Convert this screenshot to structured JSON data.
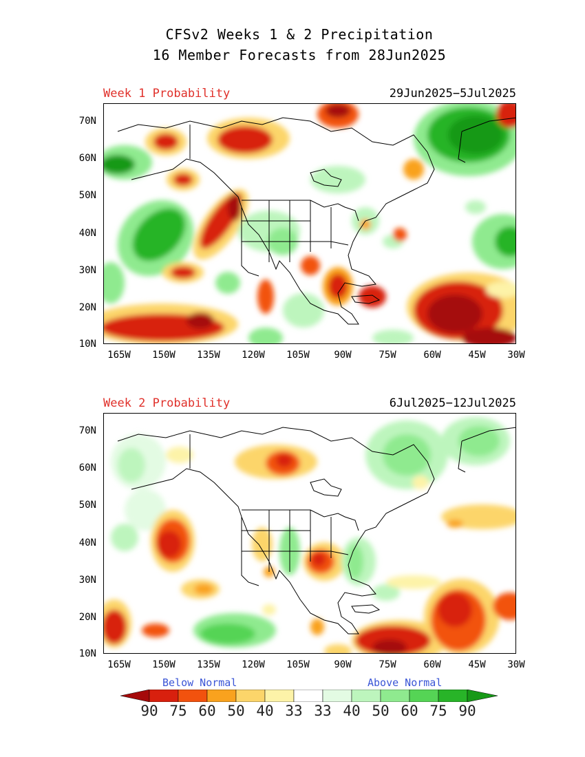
{
  "title": {
    "line1": "CFSv2 Weeks 1 & 2 Precipitation",
    "line2": "16 Member Forecasts from 28Jun2025"
  },
  "panels": [
    {
      "week_label": "Week 1 Probability",
      "date_range": "29Jun2025−5Jul2025"
    },
    {
      "week_label": "Week 2 Probability",
      "date_range": "6Jul2025−12Jul2025"
    }
  ],
  "axes": {
    "lat_labels": [
      "70N",
      "60N",
      "50N",
      "40N",
      "30N",
      "20N",
      "10N"
    ],
    "lon_labels": [
      "165W",
      "150W",
      "135W",
      "120W",
      "105W",
      "90W",
      "75W",
      "60W",
      "45W",
      "30W"
    ]
  },
  "legend": {
    "below_label": "Below Normal",
    "above_label": "Above Normal",
    "numbers": [
      "90",
      "75",
      "60",
      "50",
      "40",
      "33",
      "33",
      "40",
      "50",
      "60",
      "75",
      "90"
    ],
    "colors": [
      "#a50a0a",
      "#d8200e",
      "#f2520e",
      "#f9a21e",
      "#fcd56a",
      "#fdf3a8",
      "#ffffff",
      "#e3fbe3",
      "#bdf5bd",
      "#8fea8f",
      "#55d455",
      "#28b428",
      "#179917"
    ]
  }
}
